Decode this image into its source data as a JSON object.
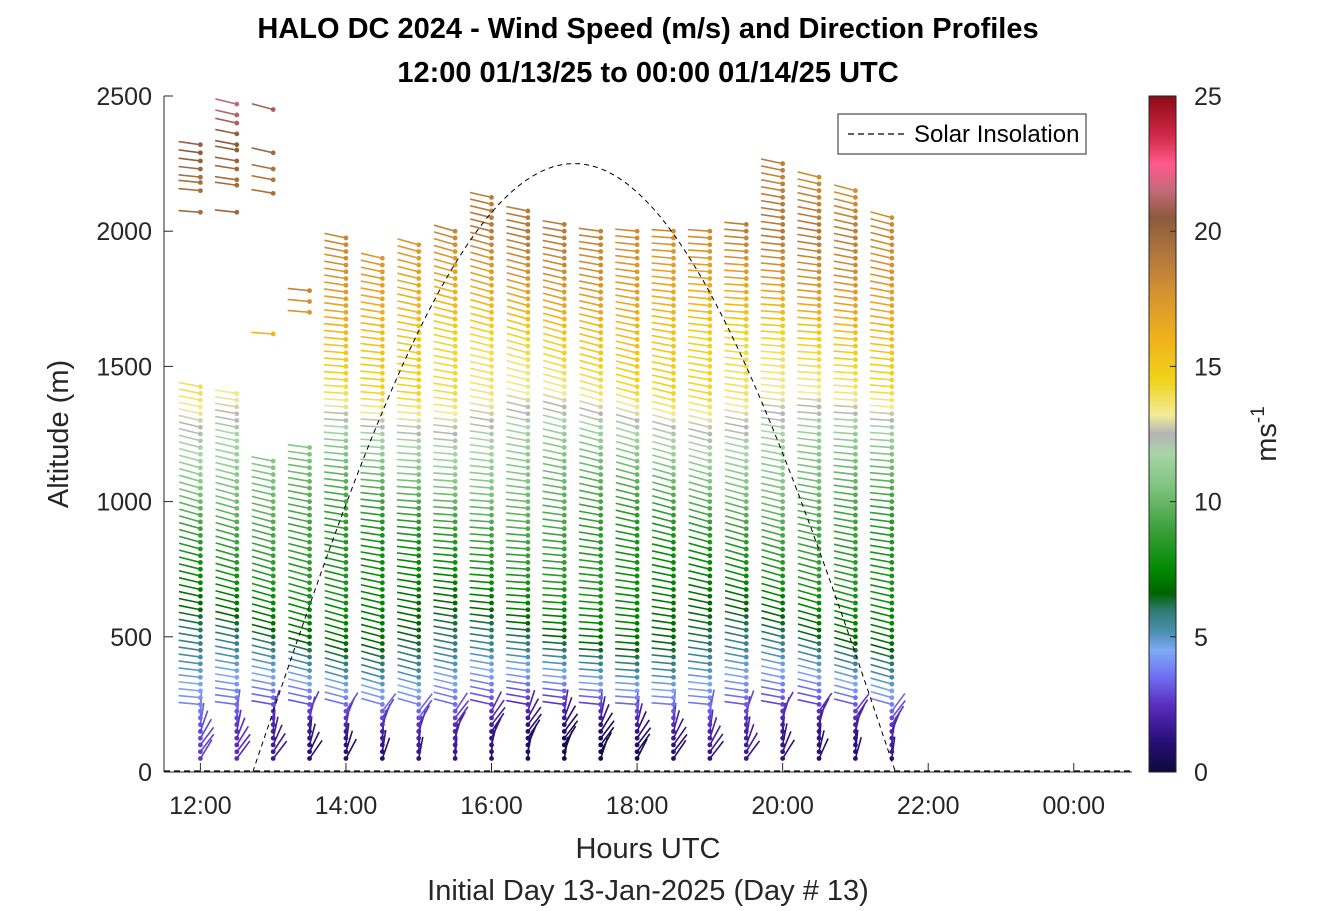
{
  "chart_data": {
    "type": "wind_barb_profile",
    "title": "HALO DC 2024 - Wind Speed (m/s) and Direction Profiles",
    "subtitle": "12:00 01/13/25 to 00:00 01/14/25  UTC",
    "xlabel": "Hours UTC",
    "xlabel2": "Initial Day 13-Jan-2025 (Day # 13)",
    "ylabel": "Altitude (m)",
    "xlim": [
      11.5,
      24.8
    ],
    "ylim": [
      0,
      2500
    ],
    "x_ticks": [
      12,
      14,
      16,
      18,
      20,
      22,
      24
    ],
    "x_tick_labels": [
      "12:00",
      "14:00",
      "16:00",
      "18:00",
      "20:00",
      "22:00",
      "00:00"
    ],
    "y_ticks": [
      0,
      500,
      1000,
      1500,
      2000,
      2500
    ],
    "y_tick_labels": [
      "0",
      "500",
      "1000",
      "1500",
      "2000",
      "2500"
    ],
    "colorbar": {
      "label": "ms",
      "label_exponent": "-1",
      "range": [
        0,
        25
      ],
      "ticks": [
        0,
        5,
        10,
        15,
        20,
        25
      ],
      "tick_labels": [
        "0",
        "5",
        "10",
        "15",
        "20",
        "25"
      ],
      "colors": [
        {
          "v": 0,
          "c": "#0b0b3b"
        },
        {
          "v": 1.2,
          "c": "#2a0f7a"
        },
        {
          "v": 2.5,
          "c": "#5a2ec0"
        },
        {
          "v": 3.5,
          "c": "#6e6ef0"
        },
        {
          "v": 4.5,
          "c": "#7faaf5"
        },
        {
          "v": 5.2,
          "c": "#4a8fb0"
        },
        {
          "v": 6.0,
          "c": "#2e7a6e"
        },
        {
          "v": 6.6,
          "c": "#006400"
        },
        {
          "v": 7.5,
          "c": "#008a00"
        },
        {
          "v": 9.0,
          "c": "#3da03d"
        },
        {
          "v": 10.5,
          "c": "#7ec27e"
        },
        {
          "v": 11.8,
          "c": "#a8d5a8"
        },
        {
          "v": 12.5,
          "c": "#b4b4b4"
        },
        {
          "v": 13.2,
          "c": "#f2ec9a"
        },
        {
          "v": 14.5,
          "c": "#f1d21a"
        },
        {
          "v": 16.0,
          "c": "#f0b21c"
        },
        {
          "v": 17.5,
          "c": "#d9962e"
        },
        {
          "v": 19.0,
          "c": "#b57a3c"
        },
        {
          "v": 20.5,
          "c": "#8b5a3c"
        },
        {
          "v": 21.5,
          "c": "#c46a7a"
        },
        {
          "v": 22.5,
          "c": "#ff5a8a"
        },
        {
          "v": 23.5,
          "c": "#d22a4a"
        },
        {
          "v": 25,
          "c": "#8b0a14"
        }
      ]
    },
    "legend": {
      "position": "top-right",
      "entries": [
        {
          "label": "Solar Insolation",
          "style": "dashed",
          "color": "#000000"
        }
      ]
    },
    "solar_insolation": {
      "rise_hour": 12.72,
      "set_hour": 21.55,
      "peak_hour": 17.13,
      "peak_altitude": 2250
    },
    "profile_times_hours": [
      12.0,
      12.5,
      13.0,
      13.5,
      14.0,
      14.5,
      15.0,
      15.5,
      16.0,
      16.5,
      17.0,
      17.5,
      18.0,
      18.5,
      19.0,
      19.5,
      20.0,
      20.5,
      21.0,
      21.5
    ],
    "altitude_step_m": 25,
    "profiles": [
      {
        "t": 12.0,
        "top": 1430,
        "extra": [
          2070,
          2150,
          2180,
          2200,
          2230,
          2260,
          2290,
          2320
        ]
      },
      {
        "t": 12.5,
        "top": 1410,
        "extra": [
          2070,
          2170,
          2190,
          2230,
          2260,
          2300,
          2320,
          2360,
          2400,
          2430,
          2470
        ]
      },
      {
        "t": 13.0,
        "top": 1170,
        "extra": [
          1620,
          2140,
          2190,
          2230,
          2290,
          2450
        ]
      },
      {
        "t": 13.5,
        "top": 1220,
        "extra": [
          1700,
          1740,
          1780
        ]
      },
      {
        "t": 14.0,
        "top": 1990,
        "extra": []
      },
      {
        "t": 14.5,
        "top": 1900,
        "extra": []
      },
      {
        "t": 15.0,
        "top": 1950,
        "extra": []
      },
      {
        "t": 15.5,
        "top": 2000,
        "extra": []
      },
      {
        "t": 16.0,
        "top": 2140,
        "extra": []
      },
      {
        "t": 16.5,
        "top": 2080,
        "extra": []
      },
      {
        "t": 17.0,
        "top": 2040,
        "extra": []
      },
      {
        "t": 17.5,
        "top": 2010,
        "extra": []
      },
      {
        "t": 18.0,
        "top": 2000,
        "extra": []
      },
      {
        "t": 18.5,
        "top": 2000,
        "extra": []
      },
      {
        "t": 19.0,
        "top": 2000,
        "extra": []
      },
      {
        "t": 19.5,
        "top": 2040,
        "extra": []
      },
      {
        "t": 20.0,
        "top": 2250,
        "extra": []
      },
      {
        "t": 20.5,
        "top": 2200,
        "extra": []
      },
      {
        "t": 21.0,
        "top": 2150,
        "extra": []
      },
      {
        "t": 21.5,
        "top": 2060,
        "extra": []
      }
    ],
    "speed_profile": {
      "description_altitudes": [
        0,
        150,
        250,
        350,
        500,
        700,
        900,
        1100,
        1250,
        1400,
        1600,
        1800,
        2000,
        2200,
        2500
      ],
      "speeds": [
        2.0,
        2.5,
        3.8,
        5.0,
        6.5,
        7.8,
        8.8,
        10.5,
        11.8,
        13.8,
        14.8,
        17.0,
        18.5,
        18.0,
        21.0
      ]
    }
  }
}
